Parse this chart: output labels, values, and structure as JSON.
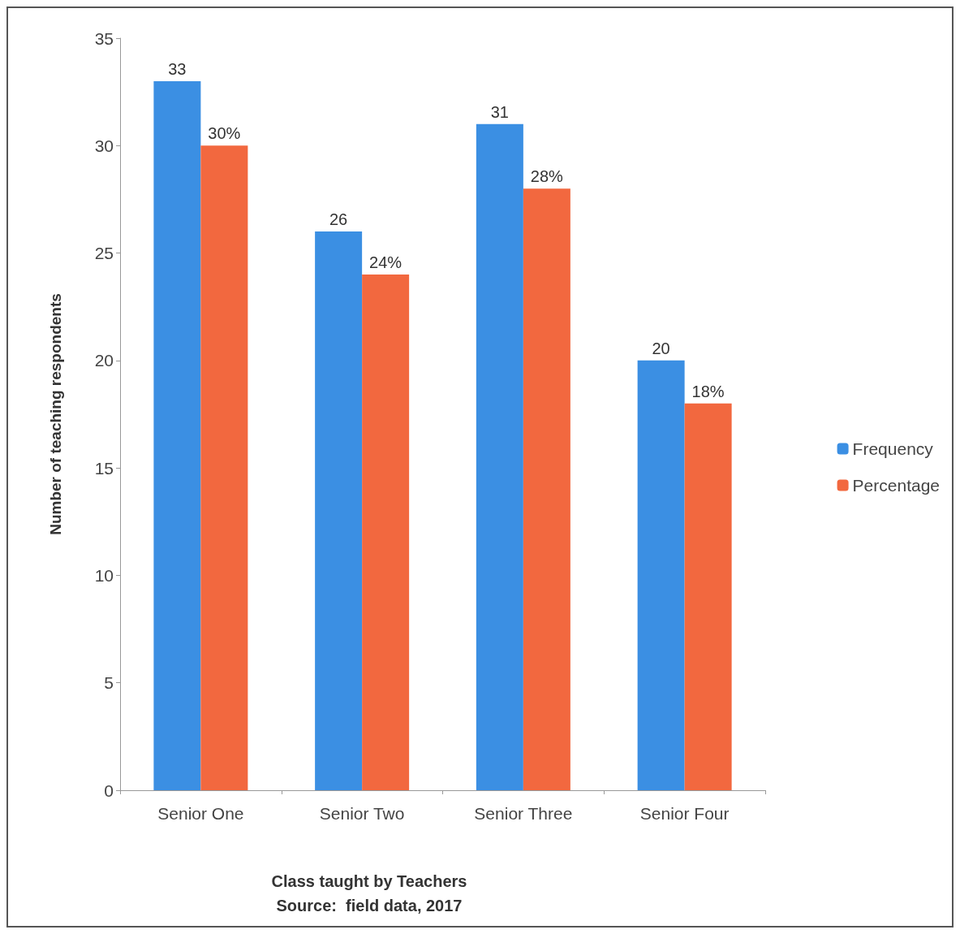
{
  "chart_data": {
    "type": "bar",
    "categories": [
      "Senior One",
      "Senior Two",
      "Senior Three",
      "Senior Four"
    ],
    "series": [
      {
        "name": "Frequency",
        "color": "#3b8fe3",
        "values": [
          33,
          26,
          31,
          20
        ],
        "value_labels": [
          "33",
          "26",
          "31",
          "20"
        ]
      },
      {
        "name": "Percentage",
        "color": "#f2683f",
        "values": [
          30,
          24,
          28,
          18
        ],
        "value_labels": [
          "30%",
          "24%",
          "28%",
          "18%"
        ]
      }
    ],
    "xlabel": "Class taught by Teachers",
    "ylabel": "Number of teaching respondents",
    "annotations": [
      "Source:  field data, 2017"
    ],
    "ylim": [
      0,
      35
    ],
    "yticks": [
      0,
      5,
      10,
      15,
      20,
      25,
      30,
      35
    ],
    "grid": false,
    "legend": "right"
  }
}
